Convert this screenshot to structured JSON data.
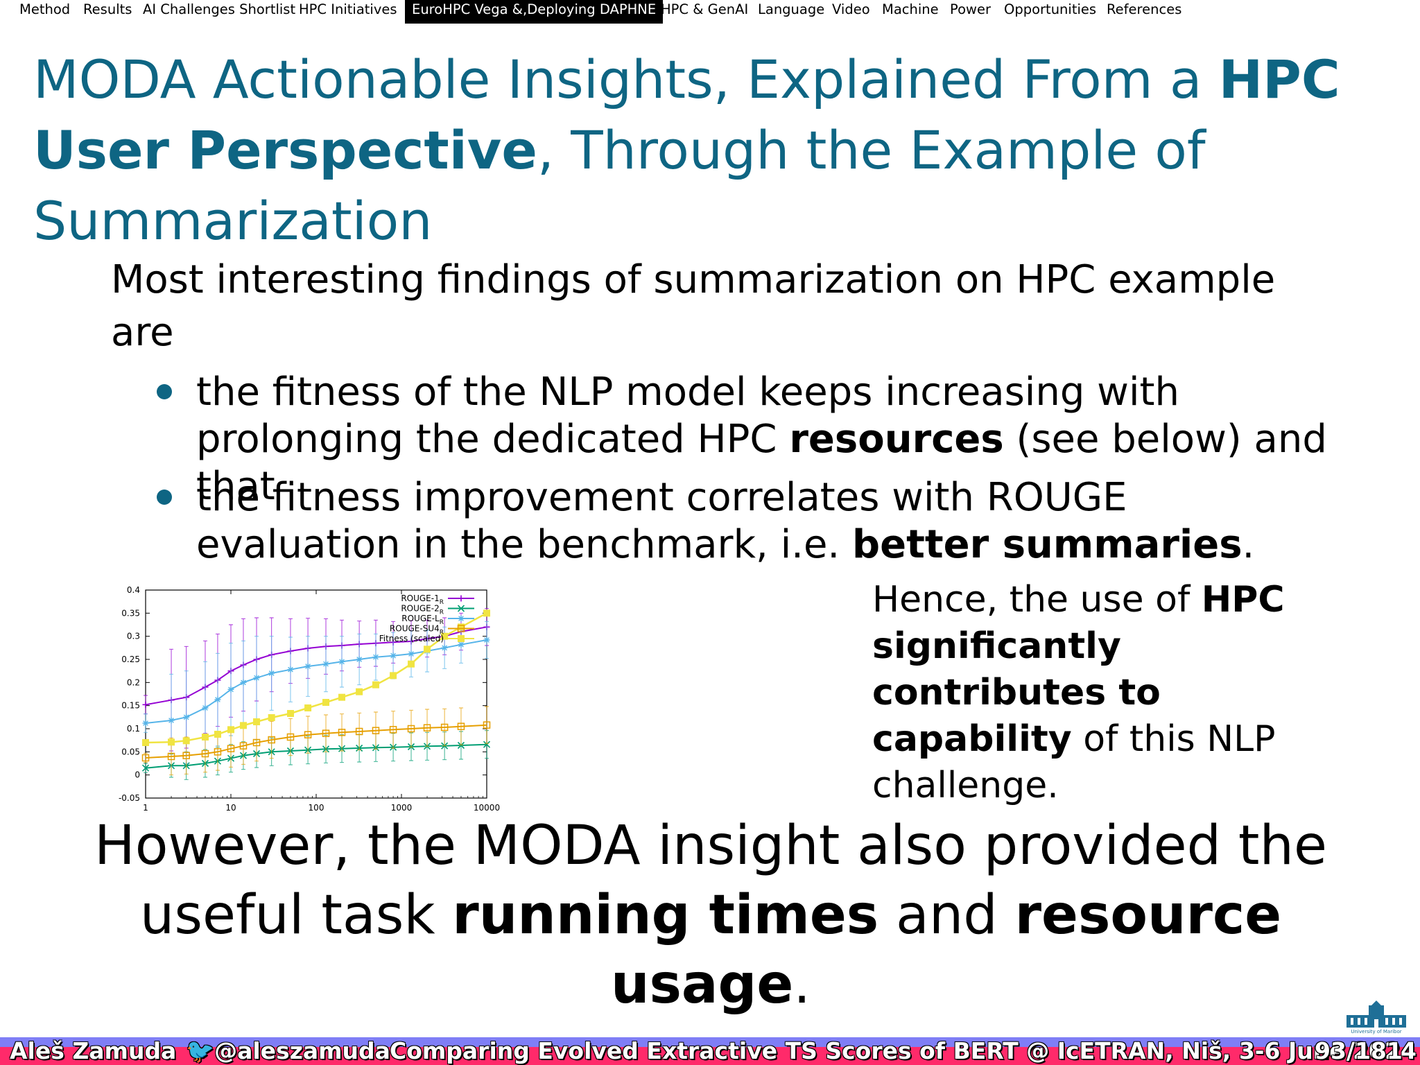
{
  "nav": {
    "items": [
      {
        "label": "Method"
      },
      {
        "label": "Results"
      },
      {
        "label": "AI Challenges Shortlist"
      },
      {
        "label": "HPC Initiatives"
      },
      {
        "label": "EuroHPC Vega &,Deploying DAPHNE",
        "active": true
      },
      {
        "label": "HPC & GenAI"
      },
      {
        "label": "Language"
      },
      {
        "label": "Video"
      },
      {
        "label": "Machine"
      },
      {
        "label": "Power"
      },
      {
        "label": "Opportunities"
      },
      {
        "label": "References"
      }
    ]
  },
  "title": {
    "part1": "MODA Actionable Insights, Explained From a ",
    "bold1": "HPC User Perspective",
    "part2": ", Through the Example of Summarization"
  },
  "intro": "Most interesting findings of summarization on HPC example are",
  "bullets": [
    {
      "pre": "the fitness of the NLP model keeps increasing with prolonging the dedicated HPC ",
      "bold": "resources",
      "post": " (see below) and that"
    },
    {
      "pre": "the fitness improvement correlates with ROUGE evaluation in the benchmark, i.e. ",
      "bold": "better summaries",
      "post": "."
    }
  ],
  "hence": {
    "pre": "Hence, the use of ",
    "bold": "HPC significantly contributes to capability",
    "post": " of this NLP challenge."
  },
  "however": {
    "pre": "However, the MODA insight also provided the useful task ",
    "bold1": "running times",
    "mid": " and ",
    "bold2": "resource usage",
    "post": "."
  },
  "chart_data": {
    "type": "line",
    "x_scale": "log",
    "xlim": [
      1,
      10000
    ],
    "ylim": [
      -0.05,
      0.4
    ],
    "x_ticks": [
      "1",
      "10",
      "100",
      "1000",
      "10000"
    ],
    "y_ticks": [
      "-0.05",
      "0",
      "0.05",
      "0.1",
      "0.15",
      "0.2",
      "0.25",
      "0.3",
      "0.35",
      "0.4"
    ],
    "legend_position": "top-right",
    "x": [
      1,
      2,
      3,
      5,
      7,
      10,
      14,
      20,
      30,
      50,
      80,
      130,
      200,
      320,
      500,
      800,
      1300,
      2000,
      3200,
      5000,
      10000
    ],
    "series": [
      {
        "name": "ROUGE-1",
        "subscript": "R",
        "color": "#9400d3",
        "marker": "plus",
        "values": [
          0.152,
          0.162,
          0.168,
          0.19,
          0.205,
          0.225,
          0.238,
          0.25,
          0.26,
          0.268,
          0.274,
          0.278,
          0.28,
          0.283,
          0.285,
          0.287,
          0.289,
          0.295,
          0.3,
          0.31,
          0.32
        ],
        "err": [
          0.02,
          0.11,
          0.11,
          0.1,
          0.1,
          0.1,
          0.1,
          0.09,
          0.08,
          0.07,
          0.065,
          0.06,
          0.055,
          0.05,
          0.05,
          0.045,
          0.045,
          0.04,
          0.04,
          0.04,
          0.04
        ]
      },
      {
        "name": "ROUGE-2",
        "subscript": "R",
        "color": "#009e73",
        "marker": "x",
        "values": [
          0.015,
          0.02,
          0.02,
          0.025,
          0.03,
          0.036,
          0.042,
          0.046,
          0.05,
          0.052,
          0.054,
          0.056,
          0.057,
          0.058,
          0.059,
          0.06,
          0.061,
          0.062,
          0.063,
          0.064,
          0.066
        ],
        "err": [
          0.01,
          0.025,
          0.03,
          0.03,
          0.03,
          0.03,
          0.03,
          0.03,
          0.03,
          0.03,
          0.03,
          0.03,
          0.03,
          0.03,
          0.03,
          0.03,
          0.03,
          0.03,
          0.03,
          0.03,
          0.03
        ]
      },
      {
        "name": "ROUGE-L",
        "subscript": "R",
        "color": "#56b4e9",
        "marker": "star",
        "values": [
          0.112,
          0.118,
          0.125,
          0.145,
          0.163,
          0.185,
          0.2,
          0.21,
          0.22,
          0.228,
          0.235,
          0.24,
          0.245,
          0.25,
          0.255,
          0.258,
          0.262,
          0.268,
          0.275,
          0.282,
          0.292
        ],
        "err": [
          0.02,
          0.1,
          0.1,
          0.1,
          0.1,
          0.1,
          0.09,
          0.09,
          0.08,
          0.07,
          0.065,
          0.06,
          0.055,
          0.055,
          0.05,
          0.05,
          0.05,
          0.045,
          0.045,
          0.04,
          0.04
        ]
      },
      {
        "name": "ROUGE-SU4",
        "subscript": "R",
        "color": "#e69f00",
        "marker": "square-open",
        "values": [
          0.037,
          0.04,
          0.042,
          0.046,
          0.05,
          0.057,
          0.063,
          0.07,
          0.076,
          0.082,
          0.087,
          0.09,
          0.092,
          0.094,
          0.096,
          0.098,
          0.1,
          0.102,
          0.103,
          0.105,
          0.108
        ],
        "err": [
          0.01,
          0.04,
          0.04,
          0.04,
          0.04,
          0.04,
          0.04,
          0.04,
          0.04,
          0.04,
          0.04,
          0.04,
          0.04,
          0.04,
          0.04,
          0.04,
          0.04,
          0.04,
          0.04,
          0.04,
          0.04
        ]
      },
      {
        "name": "Fitness (scaled)",
        "color": "#f0e442",
        "marker": "square-filled",
        "values": [
          0.07,
          0.071,
          0.074,
          0.082,
          0.088,
          0.098,
          0.107,
          0.115,
          0.124,
          0.133,
          0.145,
          0.157,
          0.168,
          0.18,
          0.195,
          0.215,
          0.24,
          0.272,
          0.3,
          0.32,
          0.35
        ],
        "err": null
      }
    ]
  },
  "footer": {
    "author": "Aleš Zamuda",
    "handle": "@aleszamuda",
    "talk": "Comparing Evolved Extractive TS Scores of BERT @ IcETRAN, Niš, 3-6 June 2024",
    "page": "93/181"
  },
  "logo": {
    "caption": "University of Maribor"
  },
  "colors": {
    "accent": "#0e6583",
    "footer_blue": "#7f7ef6",
    "footer_red": "#ff2a6a"
  }
}
